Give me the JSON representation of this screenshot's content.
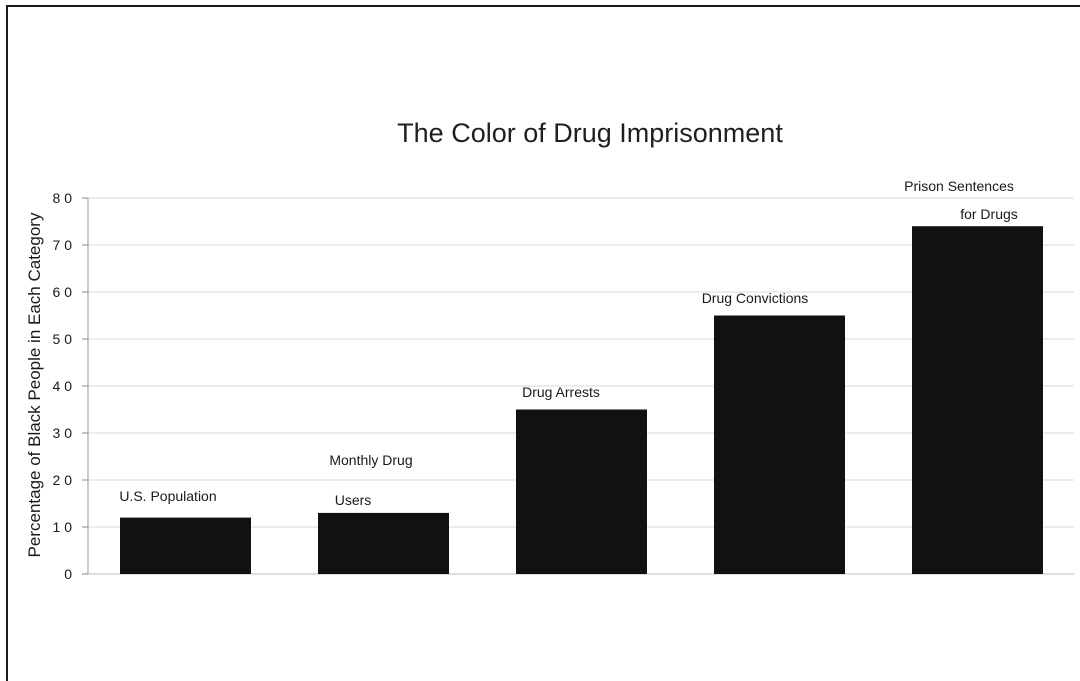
{
  "chart_data": {
    "type": "bar",
    "title": "The Color of Drug Imprisonment",
    "ylabel": "Percentage of Black People in Each Category",
    "xlabel": "",
    "ylim": [
      0,
      80
    ],
    "yticks": [
      0,
      10,
      20,
      30,
      40,
      50,
      60,
      70,
      80
    ],
    "ytick_labels": [
      "0",
      "1 0",
      "2 0",
      "3 0",
      "4 0",
      "5 0",
      "6 0",
      "7 0",
      "8 0"
    ],
    "grid": true,
    "categories": [
      "U.S. Population",
      "Monthly Drug Users",
      "Drug Arrests",
      "Drug Convictions",
      "Prison Sentences for Drugs"
    ],
    "category_label_lines": [
      [
        "U.S. Population"
      ],
      [
        "Monthly Drug",
        "Users"
      ],
      [
        "Drug Arrests"
      ],
      [
        "Drug Convictions"
      ],
      [
        "Prison Sentences",
        "for Drugs"
      ]
    ],
    "values": [
      12,
      13,
      35,
      55,
      74
    ],
    "bar_color": "#111111",
    "grid_color": "#d8d8d8"
  }
}
